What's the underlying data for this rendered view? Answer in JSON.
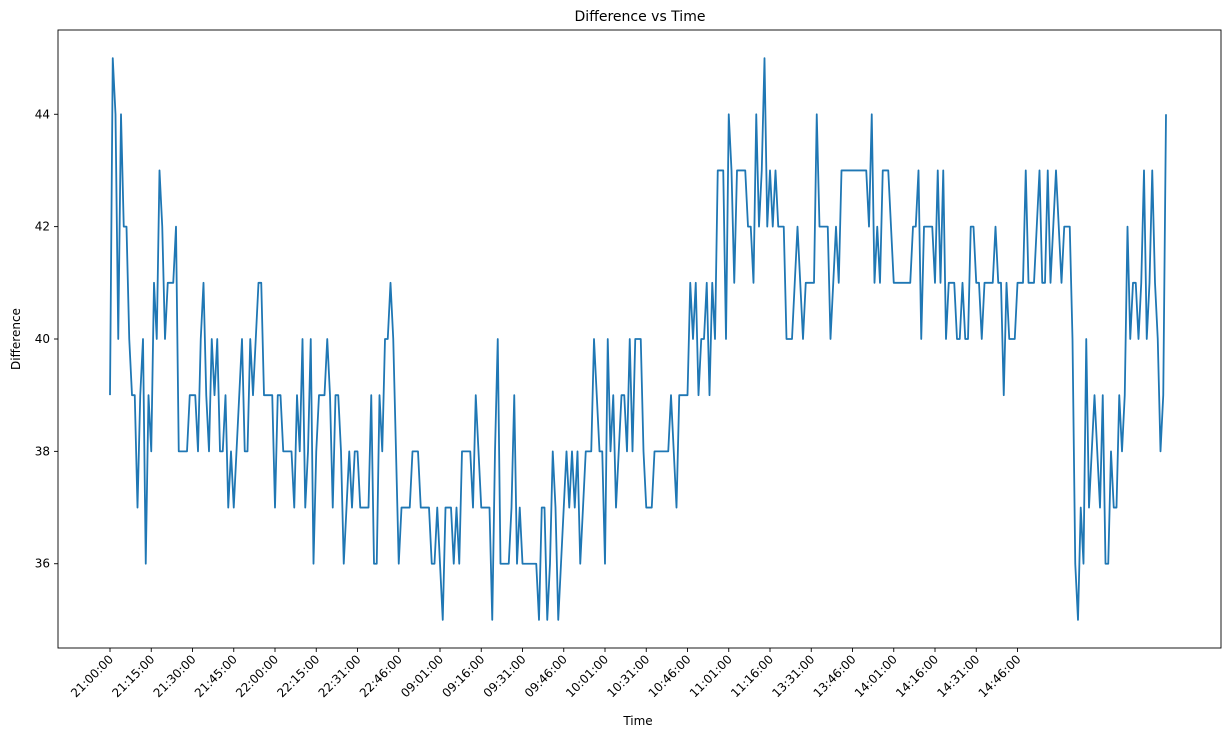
{
  "chart_data": {
    "type": "line",
    "title": "Difference vs Time",
    "xlabel": "Time",
    "ylabel": "Difference",
    "ylim": [
      34.5,
      45.5
    ],
    "yticks": [
      36,
      38,
      40,
      42,
      44
    ],
    "xtick_labels": [
      "21:00:00",
      "21:15:00",
      "21:30:00",
      "21:45:00",
      "22:00:00",
      "22:15:00",
      "22:31:00",
      "22:46:00",
      "09:01:00",
      "09:16:00",
      "09:31:00",
      "09:46:00",
      "10:01:00",
      "10:31:00",
      "10:46:00",
      "11:01:00",
      "11:16:00",
      "13:31:00",
      "13:46:00",
      "14:01:00",
      "14:16:00",
      "14:31:00",
      "14:46:00"
    ],
    "grid": false,
    "legend": "none",
    "colors": {
      "line": "#1f77b4"
    },
    "series": [
      {
        "values": [
          39,
          45,
          44,
          40,
          44,
          42,
          42,
          40,
          39,
          39,
          37,
          39,
          40,
          36,
          39,
          38,
          41,
          40,
          43,
          42,
          40,
          41,
          41,
          41,
          42,
          38,
          38,
          38,
          38,
          39,
          39,
          39,
          38,
          40,
          41,
          39,
          38,
          40,
          39,
          40,
          38,
          38,
          39,
          37,
          38,
          37,
          38,
          39,
          40,
          38,
          38,
          40,
          39,
          40,
          41,
          41,
          39,
          39,
          39,
          39,
          37,
          39,
          39,
          38,
          38,
          38,
          38,
          37,
          39,
          38,
          40,
          37,
          38,
          40,
          36,
          38,
          39,
          39,
          39,
          40,
          39,
          37,
          39,
          39,
          38,
          36,
          37,
          38,
          37,
          38,
          38,
          37,
          37,
          37,
          37,
          39,
          36,
          36,
          39,
          38,
          40,
          40,
          41,
          40,
          38,
          36,
          37,
          37,
          37,
          37,
          38,
          38,
          38,
          37,
          37,
          37,
          37,
          36,
          36,
          37,
          36,
          35,
          37,
          37,
          37,
          36,
          37,
          36,
          38,
          38,
          38,
          38,
          37,
          39,
          38,
          37,
          37,
          37,
          37,
          35,
          38,
          40,
          36,
          36,
          36,
          36,
          37,
          39,
          36,
          37,
          36,
          36,
          36,
          36,
          36,
          36,
          35,
          37,
          37,
          35,
          36,
          38,
          37,
          35,
          36,
          37,
          38,
          37,
          38,
          37,
          38,
          36,
          37,
          38,
          38,
          38,
          40,
          39,
          38,
          38,
          36,
          40,
          38,
          39,
          37,
          38,
          39,
          39,
          38,
          40,
          38,
          40,
          40,
          40,
          38,
          37,
          37,
          37,
          38,
          38,
          38,
          38,
          38,
          38,
          39,
          38,
          37,
          39,
          39,
          39,
          39,
          41,
          40,
          41,
          39,
          40,
          40,
          41,
          39,
          41,
          40,
          43,
          43,
          43,
          40,
          44,
          43,
          41,
          43,
          43,
          43,
          43,
          42,
          42,
          41,
          44,
          42,
          43,
          45,
          42,
          43,
          42,
          43,
          42,
          42,
          42,
          40,
          40,
          40,
          41,
          42,
          41,
          40,
          41,
          41,
          41,
          41,
          44,
          42,
          42,
          42,
          42,
          40,
          41,
          42,
          41,
          43,
          43,
          43,
          43,
          43,
          43,
          43,
          43,
          43,
          43,
          42,
          44,
          41,
          42,
          41,
          43,
          43,
          43,
          42,
          41,
          41,
          41,
          41,
          41,
          41,
          41,
          42,
          42,
          43,
          40,
          42,
          42,
          42,
          42,
          41,
          43,
          41,
          43,
          40,
          41,
          41,
          41,
          40,
          40,
          41,
          40,
          40,
          42,
          42,
          41,
          41,
          40,
          41,
          41,
          41,
          41,
          42,
          41,
          41,
          39,
          41,
          40,
          40,
          40,
          41,
          41,
          41,
          43,
          41,
          41,
          41,
          42,
          43,
          41,
          41,
          43,
          41,
          42,
          43,
          42,
          41,
          42,
          42,
          42,
          40,
          36,
          35,
          37,
          36,
          40,
          37,
          38,
          39,
          38,
          37,
          39,
          36,
          36,
          38,
          37,
          37,
          39,
          38,
          39,
          42,
          40,
          41,
          41,
          40,
          41,
          43,
          40,
          41,
          43,
          41,
          40,
          38,
          39,
          44
        ]
      }
    ]
  }
}
